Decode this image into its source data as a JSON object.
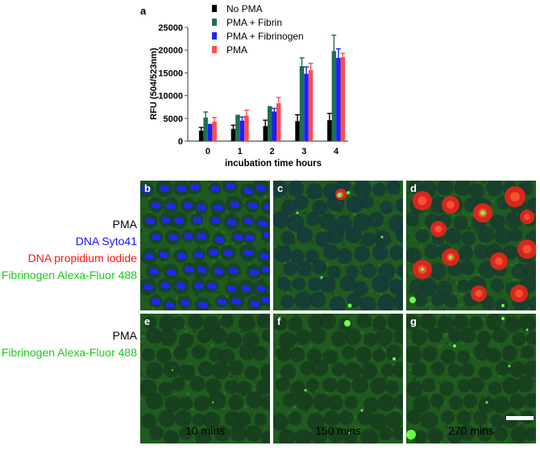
{
  "chart_data": {
    "panel_label": "a",
    "type": "bar",
    "categories": [
      "0",
      "1",
      "2",
      "3",
      "4"
    ],
    "series": [
      {
        "name": "No PMA",
        "color": "#000000",
        "values": [
          2300,
          2700,
          3300,
          4400,
          4600
        ],
        "errors": [
          700,
          800,
          1300,
          1400,
          1500
        ]
      },
      {
        "name": "PMA + Fibrin",
        "color": "#1e7050",
        "values": [
          5200,
          5800,
          7700,
          16500,
          19800
        ],
        "errors": [
          1200,
          0,
          0,
          1800,
          3500
        ]
      },
      {
        "name": "PMA + Fibrinogen",
        "color": "#1f1fff",
        "values": [
          3800,
          4500,
          6500,
          14800,
          18300
        ],
        "errors": [
          0,
          800,
          700,
          1500,
          2000
        ]
      },
      {
        "name": "PMA",
        "color": "#ff4d4d",
        "values": [
          4300,
          5600,
          8300,
          15600,
          18500
        ],
        "errors": [
          900,
          1200,
          1300,
          1500,
          800
        ]
      }
    ],
    "ylim": [
      0,
      25000
    ],
    "yticks": [
      "0",
      "5000",
      "10000",
      "15000",
      "20000",
      "25000"
    ],
    "ylabel": "RFU (504/523nm)",
    "xlabel": "incubation time hours",
    "legend_position": "top"
  },
  "micrographs": {
    "row1": {
      "panels": [
        "b",
        "c",
        "d"
      ],
      "condition": "PMA",
      "stain_blue": "DNA Syto41",
      "stain_red": "DNA propidium iodide",
      "stain_green": "Fibrinogen Alexa-Fluor 488",
      "colors": {
        "blue": "#1414ff",
        "red": "#ff1414",
        "green": "#1ec81e"
      }
    },
    "row2": {
      "panels": [
        "e",
        "f",
        "g"
      ],
      "condition": "PMA",
      "stain_green": "Fibrinogen Alexa-Fluor 488"
    },
    "time_labels": [
      "10 mins",
      "150 mins",
      "270 mins"
    ]
  }
}
